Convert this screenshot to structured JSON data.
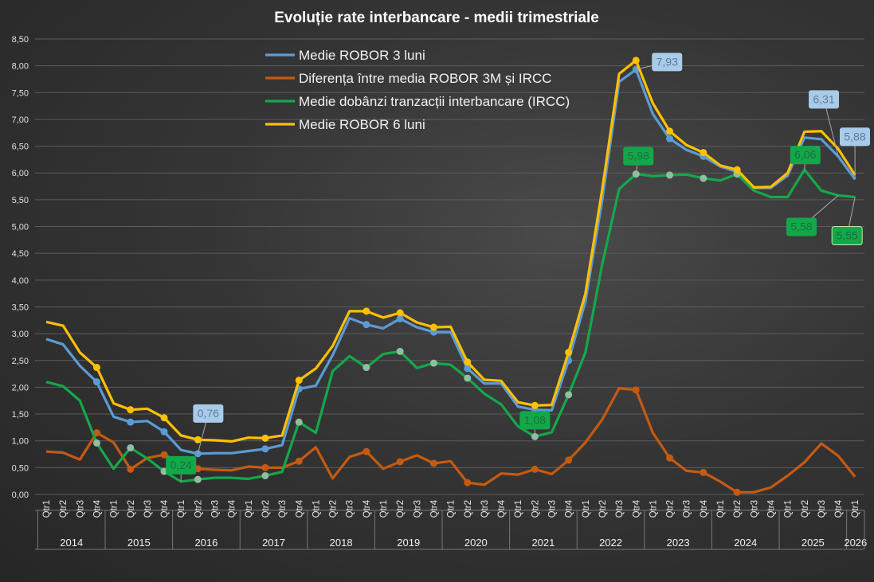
{
  "chart_data": {
    "type": "line",
    "title": "Evoluție rate interbancare - medii trimestriale",
    "xlabel": "",
    "ylabel": "",
    "ylim": [
      0,
      8.5
    ],
    "ytick_step": 0.5,
    "yticks": [
      "0,00",
      "0,50",
      "1,00",
      "1,50",
      "2,00",
      "2,50",
      "3,00",
      "3,50",
      "4,00",
      "4,50",
      "5,00",
      "5,50",
      "6,00",
      "6,50",
      "7,00",
      "7,50",
      "8,00",
      "8,50"
    ],
    "grid": true,
    "legend_position": "top-center",
    "quarter_labels": [
      "Qtr1",
      "Qtr2",
      "Qtr3",
      "Qtr4"
    ],
    "years": [
      "2014",
      "2015",
      "2016",
      "2017",
      "2018",
      "2019",
      "2020",
      "2021",
      "2022",
      "2023",
      "2024",
      "2025",
      "2026"
    ],
    "series": [
      {
        "name": "Medie ROBOR 3 luni",
        "color": "#5b9bd5",
        "values": [
          2.9,
          2.8,
          2.4,
          2.1,
          1.45,
          1.35,
          1.37,
          1.17,
          0.83,
          0.76,
          0.77,
          0.77,
          0.81,
          0.85,
          0.92,
          1.97,
          2.03,
          2.6,
          3.29,
          3.17,
          3.1,
          3.28,
          3.12,
          3.03,
          3.03,
          2.35,
          2.07,
          2.07,
          1.64,
          1.58,
          1.57,
          2.5,
          3.6,
          5.5,
          7.7,
          7.93,
          7.1,
          6.64,
          6.43,
          6.31,
          6.12,
          6.02,
          5.72,
          5.72,
          5.95,
          6.66,
          6.63,
          6.31,
          5.88
        ]
      },
      {
        "name": "Diferența între media ROBOR 3M și IRCC",
        "color": "#c55a11",
        "values": [
          0.8,
          0.78,
          0.65,
          1.15,
          0.97,
          0.47,
          0.68,
          0.74,
          0.59,
          0.48,
          0.46,
          0.45,
          0.52,
          0.5,
          0.5,
          0.62,
          0.88,
          0.3,
          0.7,
          0.8,
          0.48,
          0.61,
          0.73,
          0.58,
          0.62,
          0.22,
          0.18,
          0.39,
          0.37,
          0.47,
          0.38,
          0.64,
          0.97,
          1.4,
          1.98,
          1.95,
          1.15,
          0.68,
          0.44,
          0.41,
          0.24,
          0.04,
          0.04,
          0.13,
          0.35,
          0.6,
          0.95,
          0.72,
          0.33
        ]
      },
      {
        "name": "Medie dobânzi tranzacții interbancare (IRCC)",
        "color": "#14a84a",
        "values": [
          2.1,
          2.02,
          1.75,
          0.96,
          0.48,
          0.87,
          0.67,
          0.43,
          0.24,
          0.28,
          0.31,
          0.31,
          0.29,
          0.35,
          0.42,
          1.35,
          1.15,
          2.3,
          2.58,
          2.37,
          2.62,
          2.67,
          2.36,
          2.45,
          2.42,
          2.17,
          1.88,
          1.68,
          1.27,
          1.08,
          1.16,
          1.86,
          2.65,
          4.3,
          5.7,
          5.98,
          5.94,
          5.96,
          5.97,
          5.9,
          5.86,
          5.98,
          5.67,
          5.55,
          5.55,
          6.06,
          5.67,
          5.58,
          5.55
        ]
      },
      {
        "name": "Medie ROBOR 6 luni",
        "color": "#ffc000",
        "values": [
          3.22,
          3.15,
          2.65,
          2.37,
          1.7,
          1.58,
          1.6,
          1.43,
          1.1,
          1.02,
          1.01,
          0.99,
          1.06,
          1.05,
          1.1,
          2.13,
          2.35,
          2.77,
          3.42,
          3.42,
          3.3,
          3.39,
          3.21,
          3.12,
          3.13,
          2.47,
          2.14,
          2.12,
          1.72,
          1.66,
          1.67,
          2.65,
          3.75,
          5.7,
          7.85,
          8.1,
          7.3,
          6.78,
          6.52,
          6.38,
          6.14,
          6.06,
          5.73,
          5.74,
          6.0,
          6.77,
          6.78,
          6.45,
          5.96
        ]
      }
    ],
    "marked_points": [
      3,
      5,
      7,
      9,
      13,
      15,
      19,
      21,
      23,
      25,
      29,
      31,
      35,
      37,
      39,
      41
    ],
    "data_labels": [
      {
        "series": 0,
        "index": 9,
        "text": "0,76"
      },
      {
        "series": 0,
        "index": 35,
        "text": "7,93"
      },
      {
        "series": 0,
        "index": 47,
        "text": "6,31"
      },
      {
        "series": 0,
        "index": 48,
        "text": "5,88"
      },
      {
        "series": 2,
        "index": 8,
        "text": "0,24"
      },
      {
        "series": 2,
        "index": 29,
        "text": "1,08"
      },
      {
        "series": 2,
        "index": 35,
        "text": "5,98"
      },
      {
        "series": 2,
        "index": 45,
        "text": "6,06"
      },
      {
        "series": 2,
        "index": 47,
        "text": "5,58"
      },
      {
        "series": 2,
        "index": 48,
        "text": "5,55"
      }
    ]
  }
}
